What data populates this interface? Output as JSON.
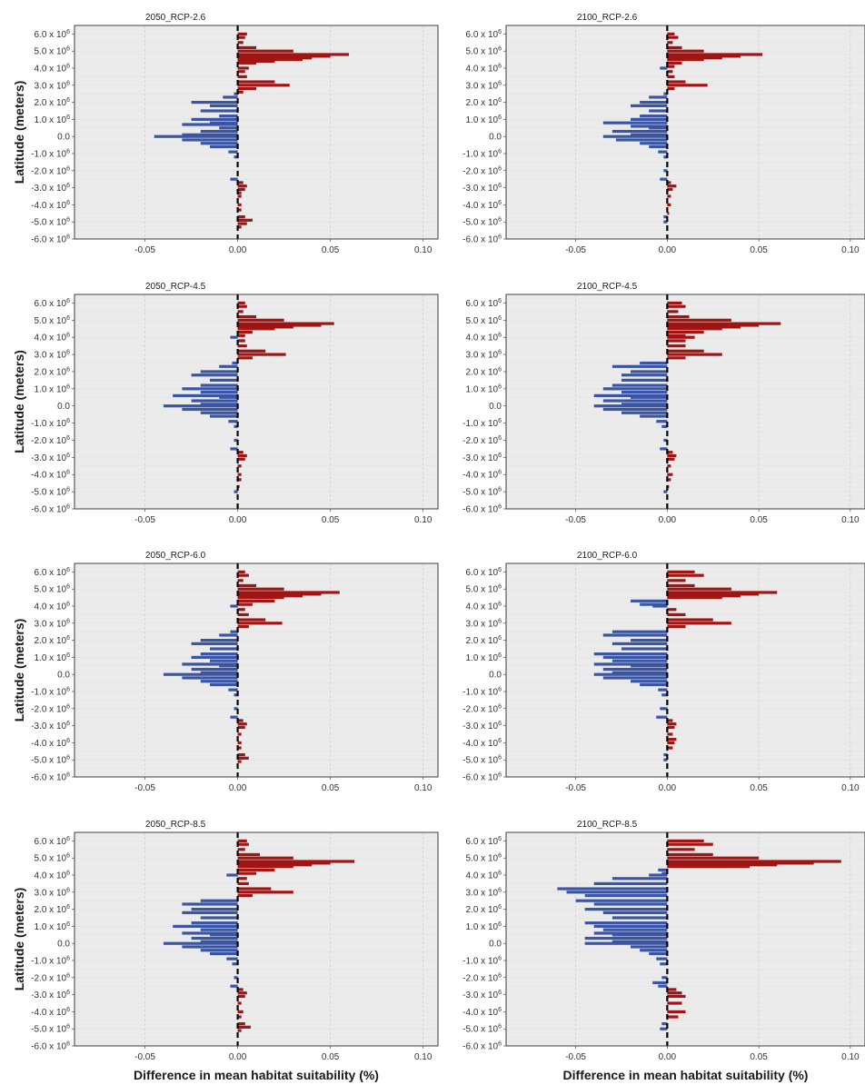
{
  "chart_data": {
    "type": "bar",
    "orientation": "horizontal",
    "grid": true,
    "colors": {
      "positive": "#a11414",
      "negative": "#3a55a3",
      "zero_line": "#000000"
    },
    "shared_axes": {
      "xlabel": "Difference in mean habitat suitability (%)",
      "ylabel": "Latitude (meters)",
      "xlim": [
        -0.088,
        0.108
      ],
      "xticks": [
        -0.05,
        0.0,
        0.05,
        0.1
      ],
      "xtick_labels": [
        "-0.05",
        "0.00",
        "0.05",
        "0.10"
      ],
      "ylim": [
        -6.0,
        6.5
      ],
      "yticks": [
        6.0,
        5.0,
        4.0,
        3.0,
        2.0,
        1.0,
        0.0,
        -1.0,
        -2.0,
        -3.0,
        -4.0,
        -5.0,
        -6.0
      ],
      "ytick_labels": [
        {
          "mant": "6.0 x 10",
          "exp": "6"
        },
        {
          "mant": "5.0 x 10",
          "exp": "6"
        },
        {
          "mant": "4.0 x 10",
          "exp": "6"
        },
        {
          "mant": "3.0 x 10",
          "exp": "6"
        },
        {
          "mant": "2.0 x 10",
          "exp": "6"
        },
        {
          "mant": "1.0 x 10",
          "exp": "6"
        },
        {
          "mant": "0.0",
          "exp": ""
        },
        {
          "mant": "-1.0 x 10",
          "exp": "6"
        },
        {
          "mant": "-2.0 x 10",
          "exp": "6"
        },
        {
          "mant": "-3.0 x 10",
          "exp": "6"
        },
        {
          "mant": "-4.0 x 10",
          "exp": "6"
        },
        {
          "mant": "-5.0 x 10",
          "exp": "6"
        },
        {
          "mant": "-6.0 x 10",
          "exp": "6"
        }
      ],
      "y_unit_note": "latitude values in units of 10^6 m"
    },
    "panels": [
      {
        "title": "2050_RCP-2.6",
        "y": [
          6.0,
          5.8,
          5.5,
          5.2,
          5.0,
          4.8,
          4.7,
          4.6,
          4.5,
          4.4,
          4.3,
          4.0,
          3.8,
          3.5,
          3.2,
          3.0,
          2.8,
          2.6,
          2.5,
          2.3,
          2.0,
          1.8,
          1.5,
          1.2,
          1.0,
          0.8,
          0.7,
          0.5,
          0.3,
          0.1,
          0.0,
          -0.2,
          -0.4,
          -0.6,
          -0.9,
          -1.2,
          -2.5,
          -2.7,
          -2.9,
          -3.1,
          -3.3,
          -3.5,
          -4.0,
          -4.3,
          -4.7,
          -4.9,
          -5.1,
          -5.3
        ],
        "values": [
          0.005,
          0.004,
          0.003,
          0.01,
          0.03,
          0.06,
          0.05,
          0.04,
          0.035,
          0.02,
          0.01,
          0.006,
          0.004,
          0.005,
          0.02,
          0.028,
          0.01,
          0.003,
          -0.002,
          -0.008,
          -0.025,
          -0.015,
          -0.02,
          -0.01,
          -0.025,
          -0.015,
          -0.03,
          -0.01,
          -0.02,
          -0.03,
          -0.045,
          -0.03,
          -0.02,
          -0.015,
          -0.005,
          -0.002,
          -0.004,
          0.003,
          0.005,
          0.004,
          0.002,
          0.002,
          0.002,
          0.002,
          0.004,
          0.008,
          0.005,
          0.002
        ]
      },
      {
        "title": "2100_RCP-2.6",
        "y": [
          6.0,
          5.8,
          5.5,
          5.2,
          5.0,
          4.8,
          4.7,
          4.6,
          4.5,
          4.3,
          4.1,
          4.0,
          3.8,
          3.5,
          3.2,
          3.0,
          2.8,
          2.5,
          2.3,
          2.0,
          1.8,
          1.5,
          1.2,
          1.0,
          0.8,
          0.6,
          0.5,
          0.3,
          0.1,
          0.0,
          -0.2,
          -0.4,
          -0.6,
          -0.9,
          -1.2,
          -2.0,
          -2.5,
          -2.7,
          -2.9,
          -3.1,
          -3.5,
          -4.0,
          -4.5,
          -4.7,
          -5.0
        ],
        "values": [
          0.004,
          0.006,
          0.003,
          0.008,
          0.02,
          0.052,
          0.04,
          0.03,
          0.02,
          0.008,
          0.004,
          -0.004,
          0.003,
          0.004,
          0.01,
          0.022,
          0.004,
          -0.002,
          -0.01,
          -0.015,
          -0.02,
          -0.01,
          -0.015,
          -0.02,
          -0.035,
          -0.02,
          -0.01,
          -0.03,
          -0.02,
          -0.035,
          -0.028,
          -0.015,
          -0.01,
          -0.005,
          -0.002,
          -0.002,
          -0.004,
          0.002,
          0.005,
          0.003,
          0.002,
          0.002,
          0.001,
          -0.002,
          -0.002
        ]
      },
      {
        "title": "2050_RCP-4.5",
        "y": [
          6.0,
          5.8,
          5.5,
          5.2,
          5.0,
          4.8,
          4.7,
          4.6,
          4.5,
          4.3,
          4.1,
          4.0,
          3.8,
          3.5,
          3.2,
          3.0,
          2.8,
          2.5,
          2.3,
          2.0,
          1.8,
          1.5,
          1.2,
          1.0,
          0.8,
          0.6,
          0.5,
          0.3,
          0.1,
          0.0,
          -0.2,
          -0.4,
          -0.6,
          -0.9,
          -1.2,
          -2.0,
          -2.5,
          -2.7,
          -2.9,
          -3.1,
          -3.5,
          -4.0,
          -4.3,
          -4.7,
          -5.0
        ],
        "values": [
          0.004,
          0.005,
          0.003,
          0.01,
          0.025,
          0.052,
          0.045,
          0.03,
          0.02,
          0.008,
          0.004,
          -0.004,
          0.004,
          0.005,
          0.015,
          0.026,
          0.008,
          -0.003,
          -0.01,
          -0.02,
          -0.025,
          -0.015,
          -0.02,
          -0.03,
          -0.02,
          -0.035,
          -0.01,
          -0.025,
          -0.02,
          -0.04,
          -0.03,
          -0.02,
          -0.015,
          -0.005,
          -0.002,
          -0.002,
          -0.004,
          0.003,
          0.005,
          0.004,
          0.002,
          0.002,
          0.002,
          0.001,
          -0.002
        ]
      },
      {
        "title": "2100_RCP-4.5",
        "y": [
          6.0,
          5.8,
          5.5,
          5.2,
          5.0,
          4.8,
          4.7,
          4.6,
          4.5,
          4.3,
          4.1,
          4.0,
          3.8,
          3.5,
          3.2,
          3.0,
          2.8,
          2.5,
          2.3,
          2.0,
          1.8,
          1.5,
          1.2,
          1.0,
          0.8,
          0.6,
          0.5,
          0.3,
          0.1,
          0.0,
          -0.2,
          -0.4,
          -0.6,
          -0.9,
          -1.2,
          -2.0,
          -2.5,
          -2.7,
          -2.9,
          -3.1,
          -3.5,
          -4.0,
          -4.3,
          -4.7,
          -5.0
        ],
        "values": [
          0.008,
          0.01,
          0.006,
          0.012,
          0.035,
          0.062,
          0.05,
          0.04,
          0.03,
          0.02,
          0.01,
          0.015,
          0.01,
          0.01,
          0.02,
          0.03,
          0.01,
          -0.015,
          -0.03,
          -0.02,
          -0.025,
          -0.025,
          -0.03,
          -0.035,
          -0.025,
          -0.04,
          -0.02,
          -0.035,
          -0.025,
          -0.04,
          -0.035,
          -0.025,
          -0.015,
          -0.006,
          -0.003,
          -0.002,
          -0.004,
          0.003,
          0.005,
          0.004,
          0.002,
          0.003,
          0.002,
          0.001,
          -0.002
        ]
      },
      {
        "title": "2050_RCP-6.0",
        "y": [
          6.0,
          5.8,
          5.5,
          5.2,
          5.0,
          4.8,
          4.7,
          4.6,
          4.5,
          4.3,
          4.1,
          4.0,
          3.8,
          3.5,
          3.2,
          3.0,
          2.8,
          2.5,
          2.3,
          2.0,
          1.8,
          1.5,
          1.2,
          1.0,
          0.8,
          0.6,
          0.5,
          0.3,
          0.1,
          0.0,
          -0.2,
          -0.4,
          -0.6,
          -0.9,
          -1.2,
          -2.0,
          -2.5,
          -2.7,
          -2.9,
          -3.1,
          -3.5,
          -4.0,
          -4.3,
          -4.7,
          -4.9,
          -5.1
        ],
        "values": [
          0.004,
          0.006,
          0.003,
          0.01,
          0.025,
          0.055,
          0.045,
          0.035,
          0.025,
          0.02,
          0.008,
          -0.004,
          0.004,
          0.006,
          0.015,
          0.024,
          0.006,
          -0.004,
          -0.01,
          -0.02,
          -0.025,
          -0.015,
          -0.02,
          -0.025,
          -0.015,
          -0.03,
          -0.01,
          -0.025,
          -0.02,
          -0.04,
          -0.03,
          -0.02,
          -0.015,
          -0.005,
          -0.002,
          -0.002,
          -0.004,
          0.003,
          0.005,
          0.004,
          0.002,
          0.002,
          0.002,
          0.004,
          0.006,
          0.002
        ]
      },
      {
        "title": "2100_RCP-6.0",
        "y": [
          6.0,
          5.8,
          5.5,
          5.2,
          5.0,
          4.8,
          4.7,
          4.6,
          4.5,
          4.3,
          4.1,
          4.0,
          3.8,
          3.5,
          3.2,
          3.0,
          2.8,
          2.5,
          2.3,
          2.0,
          1.8,
          1.5,
          1.2,
          1.0,
          0.8,
          0.6,
          0.5,
          0.3,
          0.1,
          0.0,
          -0.2,
          -0.4,
          -0.6,
          -0.9,
          -1.2,
          -2.0,
          -2.5,
          -2.7,
          -2.9,
          -3.1,
          -3.5,
          -3.8,
          -4.0,
          -4.3,
          -4.7,
          -5.0
        ],
        "values": [
          0.015,
          0.02,
          0.01,
          0.015,
          0.035,
          0.06,
          0.05,
          0.04,
          0.03,
          -0.02,
          -0.015,
          -0.008,
          0.005,
          0.01,
          0.025,
          0.035,
          0.01,
          -0.03,
          -0.035,
          -0.02,
          -0.03,
          -0.025,
          -0.04,
          -0.035,
          -0.03,
          -0.04,
          -0.02,
          -0.035,
          -0.03,
          -0.04,
          -0.035,
          -0.02,
          -0.015,
          -0.005,
          -0.003,
          -0.004,
          -0.006,
          0.003,
          0.005,
          0.004,
          0.003,
          0.005,
          0.004,
          0.003,
          -0.002,
          -0.002
        ]
      },
      {
        "title": "2050_RCP-8.5",
        "y": [
          6.0,
          5.8,
          5.5,
          5.2,
          5.0,
          4.8,
          4.7,
          4.6,
          4.5,
          4.3,
          4.1,
          4.0,
          3.8,
          3.5,
          3.2,
          3.0,
          2.8,
          2.5,
          2.3,
          2.0,
          1.8,
          1.5,
          1.2,
          1.0,
          0.8,
          0.6,
          0.5,
          0.3,
          0.1,
          0.0,
          -0.2,
          -0.4,
          -0.6,
          -0.9,
          -1.2,
          -2.0,
          -2.5,
          -2.7,
          -2.9,
          -3.1,
          -3.5,
          -4.0,
          -4.3,
          -4.7,
          -4.9,
          -5.1
        ],
        "values": [
          0.005,
          0.006,
          0.004,
          0.012,
          0.03,
          0.063,
          0.05,
          0.04,
          0.03,
          0.02,
          0.01,
          -0.006,
          0.005,
          0.006,
          0.018,
          0.03,
          0.008,
          -0.02,
          -0.03,
          -0.025,
          -0.03,
          -0.02,
          -0.025,
          -0.035,
          -0.02,
          -0.03,
          -0.015,
          -0.025,
          -0.02,
          -0.04,
          -0.03,
          -0.02,
          -0.015,
          -0.006,
          -0.003,
          -0.002,
          -0.004,
          0.003,
          0.005,
          0.004,
          0.002,
          0.003,
          0.002,
          0.004,
          0.007,
          0.002
        ]
      },
      {
        "title": "2100_RCP-8.5",
        "y": [
          6.0,
          5.8,
          5.5,
          5.2,
          5.0,
          4.8,
          4.7,
          4.6,
          4.5,
          4.3,
          4.1,
          4.0,
          3.8,
          3.5,
          3.2,
          3.0,
          2.8,
          2.5,
          2.3,
          2.0,
          1.8,
          1.5,
          1.2,
          1.0,
          0.8,
          0.6,
          0.5,
          0.3,
          0.1,
          0.0,
          -0.2,
          -0.4,
          -0.6,
          -0.9,
          -1.2,
          -2.0,
          -2.3,
          -2.5,
          -2.7,
          -2.9,
          -3.1,
          -3.5,
          -4.0,
          -4.3,
          -4.7,
          -5.0
        ],
        "values": [
          0.02,
          0.025,
          0.015,
          0.025,
          0.05,
          0.095,
          0.08,
          0.06,
          0.045,
          -0.005,
          -0.003,
          -0.01,
          -0.03,
          -0.04,
          -0.06,
          -0.055,
          -0.045,
          -0.05,
          -0.04,
          -0.045,
          -0.035,
          -0.03,
          -0.045,
          -0.04,
          -0.035,
          -0.04,
          -0.03,
          -0.045,
          -0.03,
          -0.045,
          -0.02,
          -0.015,
          -0.01,
          -0.006,
          -0.004,
          -0.003,
          -0.008,
          -0.005,
          0.005,
          0.008,
          0.01,
          0.008,
          0.01,
          0.006,
          -0.003,
          -0.004
        ]
      }
    ]
  }
}
